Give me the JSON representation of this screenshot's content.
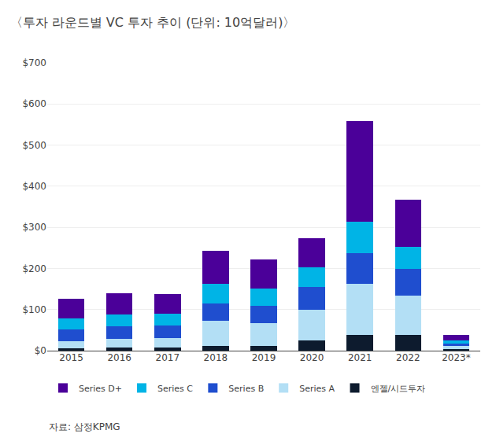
{
  "chart_data": {
    "type": "bar",
    "stacked": true,
    "title": "〈투자 라운드별 VC 투자 추이 (단위: 10억달러)〉",
    "categories": [
      "2015",
      "2016",
      "2017",
      "2018",
      "2019",
      "2020",
      "2021",
      "2022",
      "2023*"
    ],
    "series": [
      {
        "name": "엔젤/시드투자",
        "color": "#0d1b2e",
        "values": [
          5,
          8,
          8,
          12,
          12,
          25,
          38,
          38,
          4
        ]
      },
      {
        "name": "Series A",
        "color": "#b3dff5",
        "values": [
          18,
          20,
          22,
          60,
          55,
          75,
          125,
          95,
          7
        ]
      },
      {
        "name": "Series B",
        "color": "#1f4ecf",
        "values": [
          28,
          32,
          32,
          42,
          42,
          55,
          75,
          65,
          7
        ]
      },
      {
        "name": "Series C",
        "color": "#00b4e6",
        "values": [
          28,
          28,
          28,
          48,
          42,
          48,
          75,
          55,
          7
        ]
      },
      {
        "name": "Series D+",
        "color": "#4b0099",
        "values": [
          48,
          52,
          48,
          80,
          70,
          70,
          245,
          115,
          13
        ]
      }
    ],
    "ylim": [
      0,
      700
    ],
    "yticks": [
      {
        "value": 0,
        "label": "$0"
      },
      {
        "value": 100,
        "label": "$100"
      },
      {
        "value": 200,
        "label": "$200"
      },
      {
        "value": 300,
        "label": "$300"
      },
      {
        "value": 400,
        "label": "$400"
      },
      {
        "value": 500,
        "label": "$500"
      },
      {
        "value": 600,
        "label": "$600"
      },
      {
        "value": 700,
        "label": "$700"
      }
    ],
    "grid": true,
    "legend": "bottom",
    "annotations": [
      "자료: 삼정KPMG"
    ]
  }
}
